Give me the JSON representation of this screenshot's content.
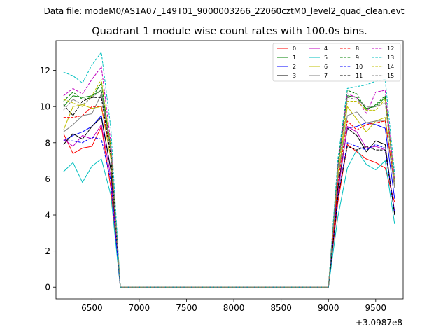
{
  "header": {
    "data_file": "Data file: modeM0/AS1A07_149T01_9000003266_22060cztM0_level2_quad_clean.evt"
  },
  "chart_data": {
    "type": "line",
    "title": "Quadrant 1 module wise count rates with 100.0s bins.",
    "xlabel": "",
    "ylabel": "",
    "x_offset_label": "+3.0987e8",
    "xlim": [
      6120,
      9790
    ],
    "ylim": [
      -0.65,
      13.65
    ],
    "xticks": [
      6500,
      7000,
      7500,
      8000,
      8500,
      9000,
      9500
    ],
    "xtick_labels": [
      "6500",
      "7000",
      "7500",
      "8000",
      "8500",
      "9000",
      "9500"
    ],
    "yticks": [
      0,
      2,
      4,
      6,
      8,
      10,
      12
    ],
    "ytick_labels": [
      "0",
      "2",
      "4",
      "6",
      "8",
      "10",
      "12"
    ],
    "grid": false,
    "legend_position": "top-right",
    "x": [
      6200,
      6300,
      6400,
      6500,
      6600,
      6700,
      6800,
      6900,
      7000,
      7100,
      7200,
      7300,
      7400,
      7500,
      7600,
      7700,
      7800,
      7900,
      8000,
      8100,
      8200,
      8300,
      8400,
      8500,
      8600,
      8700,
      8800,
      8900,
      9000,
      9100,
      9200,
      9300,
      9400,
      9500,
      9600,
      9700
    ],
    "series": [
      {
        "name": "0",
        "color": "#ff0000",
        "dash": "solid",
        "values": [
          8.5,
          7.4,
          7.7,
          7.8,
          8.9,
          5.5,
          0,
          0,
          0,
          0,
          0,
          0,
          0,
          0,
          0,
          0,
          0,
          0,
          0,
          0,
          0,
          0,
          0,
          0,
          0,
          0,
          0,
          0,
          0,
          4.7,
          7.9,
          7.5,
          7.1,
          6.9,
          6.6,
          4.7
        ]
      },
      {
        "name": "1",
        "color": "#008000",
        "dash": "solid",
        "values": [
          10.0,
          10.6,
          10.5,
          10.6,
          10.9,
          7.8,
          0,
          0,
          0,
          0,
          0,
          0,
          0,
          0,
          0,
          0,
          0,
          0,
          0,
          0,
          0,
          0,
          0,
          0,
          0,
          0,
          0,
          0,
          0,
          6.6,
          10.6,
          10.5,
          9.9,
          10.0,
          10.5,
          5.9
        ]
      },
      {
        "name": "2",
        "color": "#0000ff",
        "dash": "solid",
        "values": [
          8.1,
          8.4,
          8.6,
          8.9,
          9.5,
          6.5,
          0,
          0,
          0,
          0,
          0,
          0,
          0,
          0,
          0,
          0,
          0,
          0,
          0,
          0,
          0,
          0,
          0,
          0,
          0,
          0,
          0,
          0,
          0,
          5.5,
          8.8,
          8.9,
          9.1,
          9.0,
          8.8,
          4.9
        ]
      },
      {
        "name": "3",
        "color": "#000000",
        "dash": "solid",
        "values": [
          7.9,
          8.5,
          8.2,
          8.9,
          9.4,
          6.5,
          0,
          0,
          0,
          0,
          0,
          0,
          0,
          0,
          0,
          0,
          0,
          0,
          0,
          0,
          0,
          0,
          0,
          0,
          0,
          0,
          0,
          0,
          0,
          5.5,
          8.8,
          8.4,
          7.5,
          8.1,
          7.9,
          4.0
        ]
      },
      {
        "name": "4",
        "color": "#bf00bf",
        "dash": "solid",
        "values": [
          8.2,
          7.8,
          8.4,
          8.2,
          9.0,
          6.1,
          0,
          0,
          0,
          0,
          0,
          0,
          0,
          0,
          0,
          0,
          0,
          0,
          0,
          0,
          0,
          0,
          0,
          0,
          0,
          0,
          0,
          0,
          0,
          5.2,
          8.9,
          8.6,
          7.7,
          7.8,
          7.6,
          4.2
        ]
      },
      {
        "name": "5",
        "color": "#00bfbf",
        "dash": "solid",
        "values": [
          6.4,
          6.9,
          5.8,
          6.7,
          7.1,
          5.1,
          0,
          0,
          0,
          0,
          0,
          0,
          0,
          0,
          0,
          0,
          0,
          0,
          0,
          0,
          0,
          0,
          0,
          0,
          0,
          0,
          0,
          0,
          0,
          3.9,
          6.6,
          7.6,
          6.8,
          6.5,
          7.0,
          3.5
        ]
      },
      {
        "name": "6",
        "color": "#bfbf00",
        "dash": "solid",
        "values": [
          8.7,
          10.0,
          10.1,
          9.9,
          10.0,
          7.1,
          0,
          0,
          0,
          0,
          0,
          0,
          0,
          0,
          0,
          0,
          0,
          0,
          0,
          0,
          0,
          0,
          0,
          0,
          0,
          0,
          0,
          0,
          0,
          6.1,
          10.0,
          9.3,
          8.6,
          9.2,
          9.4,
          5.6
        ]
      },
      {
        "name": "7",
        "color": "#808080",
        "dash": "solid",
        "values": [
          8.6,
          9.0,
          9.5,
          9.6,
          10.7,
          7.6,
          0,
          0,
          0,
          0,
          0,
          0,
          0,
          0,
          0,
          0,
          0,
          0,
          0,
          0,
          0,
          0,
          0,
          0,
          0,
          0,
          0,
          0,
          0,
          6.0,
          9.5,
          9.7,
          9.1,
          9.2,
          9.2,
          5.5
        ]
      },
      {
        "name": "8",
        "color": "#ff0000",
        "dash": "dashed",
        "values": [
          9.4,
          9.4,
          9.5,
          10.0,
          10.0,
          7.4,
          0,
          0,
          0,
          0,
          0,
          0,
          0,
          0,
          0,
          0,
          0,
          0,
          0,
          0,
          0,
          0,
          0,
          0,
          0,
          0,
          0,
          0,
          0,
          5.8,
          9.2,
          8.7,
          9.0,
          9.1,
          9.2,
          5.8
        ]
      },
      {
        "name": "9",
        "color": "#008000",
        "dash": "dashed",
        "values": [
          10.3,
          10.8,
          10.4,
          10.5,
          11.3,
          7.7,
          0,
          0,
          0,
          0,
          0,
          0,
          0,
          0,
          0,
          0,
          0,
          0,
          0,
          0,
          0,
          0,
          0,
          0,
          0,
          0,
          0,
          0,
          0,
          6.9,
          10.9,
          10.7,
          9.8,
          10.1,
          10.6,
          5.9
        ]
      },
      {
        "name": "10",
        "color": "#0000ff",
        "dash": "dashed",
        "values": [
          8.1,
          8.1,
          8.0,
          8.3,
          8.2,
          5.9,
          0,
          0,
          0,
          0,
          0,
          0,
          0,
          0,
          0,
          0,
          0,
          0,
          0,
          0,
          0,
          0,
          0,
          0,
          0,
          0,
          0,
          0,
          0,
          5.0,
          8.0,
          7.8,
          7.6,
          7.9,
          7.7,
          4.1
        ]
      },
      {
        "name": "11",
        "color": "#000000",
        "dash": "dashed",
        "values": [
          10.1,
          9.5,
          10.3,
          10.5,
          10.5,
          7.3,
          0,
          0,
          0,
          0,
          0,
          0,
          0,
          0,
          0,
          0,
          0,
          0,
          0,
          0,
          0,
          0,
          0,
          0,
          0,
          0,
          0,
          0,
          0,
          5.0,
          7.8,
          7.6,
          7.8,
          7.6,
          7.6,
          4.1
        ]
      },
      {
        "name": "12",
        "color": "#bf00bf",
        "dash": "dashed",
        "values": [
          10.6,
          11.0,
          10.7,
          11.5,
          12.2,
          8.0,
          0,
          0,
          0,
          0,
          0,
          0,
          0,
          0,
          0,
          0,
          0,
          0,
          0,
          0,
          0,
          0,
          0,
          0,
          0,
          0,
          0,
          0,
          0,
          6.7,
          10.7,
          10.5,
          9.6,
          10.8,
          10.9,
          5.9
        ]
      },
      {
        "name": "13",
        "color": "#00bfbf",
        "dash": "dashed",
        "values": [
          11.9,
          11.7,
          11.3,
          12.3,
          13.0,
          8.8,
          0,
          0,
          0,
          0,
          0,
          0,
          0,
          0,
          0,
          0,
          0,
          0,
          0,
          0,
          0,
          0,
          0,
          0,
          0,
          0,
          0,
          0,
          0,
          7.1,
          11.0,
          11.1,
          11.2,
          11.4,
          11.5,
          6.3
        ]
      },
      {
        "name": "14",
        "color": "#bfbf00",
        "dash": "dashed",
        "values": [
          10.4,
          10.2,
          10.0,
          10.6,
          11.5,
          7.7,
          0,
          0,
          0,
          0,
          0,
          0,
          0,
          0,
          0,
          0,
          0,
          0,
          0,
          0,
          0,
          0,
          0,
          0,
          0,
          0,
          0,
          0,
          0,
          6.4,
          10.3,
          10.3,
          9.8,
          9.8,
          10.4,
          5.8
        ]
      },
      {
        "name": "15",
        "color": "#808080",
        "dash": "dashed",
        "values": [
          9.8,
          10.4,
          10.1,
          10.5,
          10.9,
          7.5,
          0,
          0,
          0,
          0,
          0,
          0,
          0,
          0,
          0,
          0,
          0,
          0,
          0,
          0,
          0,
          0,
          0,
          0,
          0,
          0,
          0,
          0,
          0,
          6.6,
          10.5,
          10.4,
          10.0,
          10.0,
          10.2,
          5.7
        ]
      }
    ]
  }
}
